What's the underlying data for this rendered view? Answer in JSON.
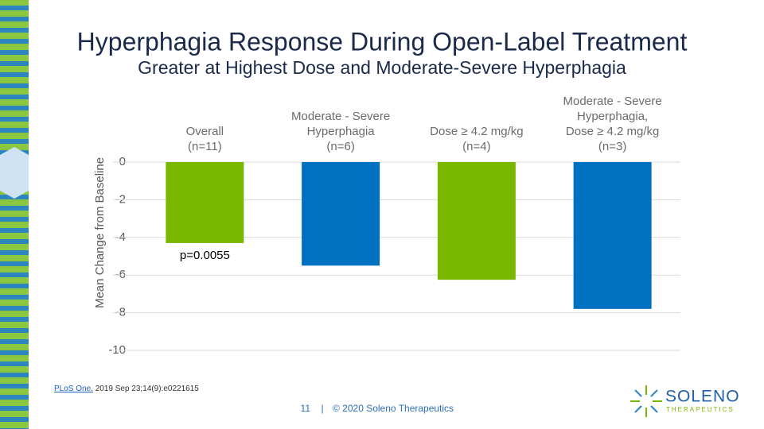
{
  "chart_data": {
    "type": "bar",
    "title": "Hyperphagia Response During Open-Label Treatment",
    "subtitle": "Greater at Highest Dose and Moderate-Severe Hyperphagia",
    "y_label": "Mean Change from Baseline",
    "categories": [
      "Overall\n(n=11)",
      "Moderate - Severe\nHyperphagia\n(n=6)",
      "Dose ≥ 4.2 mg/kg\n(n=4)",
      "Moderate - Severe\nHyperphagia,\nDose ≥ 4.2 mg/kg\n(n=3)"
    ],
    "values": [
      -4.3,
      -5.5,
      -6.25,
      -7.8
    ],
    "colors": [
      "#7ab800",
      "#0070c0",
      "#7ab800",
      "#0070c0"
    ],
    "annotations": [
      "p=0.0055"
    ],
    "ylim": [
      -10,
      0
    ],
    "yticks": [
      0,
      -2,
      -4,
      -6,
      -8,
      -10
    ],
    "grid": true
  },
  "citation": {
    "link": "PLoS One.",
    "text": "2019 Sep 23;14(9):e0221615"
  },
  "footer": {
    "page": "11",
    "separator": "|",
    "text": "© 2020 Soleno Therapeutics"
  },
  "logo": {
    "name": "SOLENO",
    "tagline": "THERAPEUTICS"
  }
}
